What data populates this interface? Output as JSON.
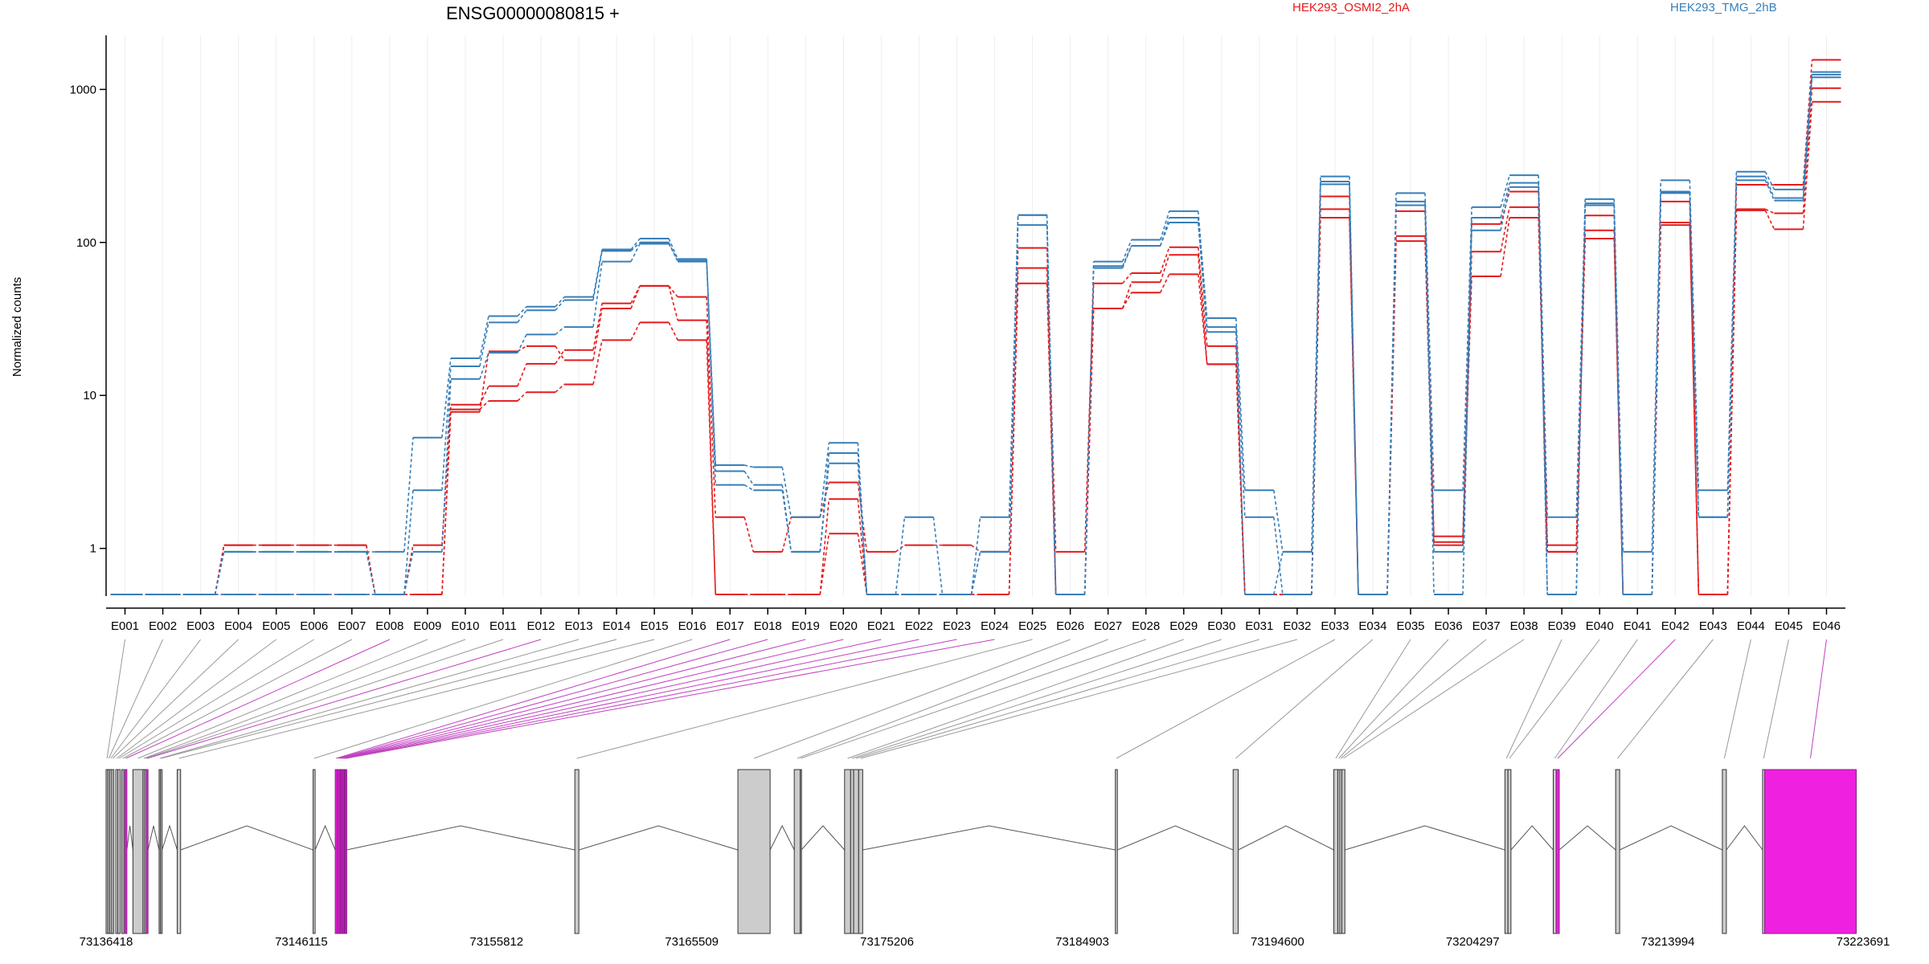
{
  "chart_data": {
    "type": "line",
    "title": "ENSG00000080815 +",
    "ylabel": "Normalized counts",
    "xlabel": "",
    "yscale": "log",
    "ylim": [
      0.5,
      2000
    ],
    "yticks": [
      1,
      10,
      100,
      1000
    ],
    "ytick_labels": [
      "1",
      "10",
      "100",
      "1000"
    ],
    "categories": [
      "E001",
      "E002",
      "E003",
      "E004",
      "E005",
      "E006",
      "E007",
      "E008",
      "E009",
      "E010",
      "E011",
      "E012",
      "E013",
      "E014",
      "E015",
      "E016",
      "E017",
      "E018",
      "E019",
      "E020",
      "E021",
      "E022",
      "E023",
      "E024",
      "E025",
      "E026",
      "E027",
      "E028",
      "E029",
      "E030",
      "E031",
      "E032",
      "E033",
      "E034",
      "E035",
      "E036",
      "E037",
      "E038",
      "E039",
      "E040",
      "E041",
      "E042",
      "E043",
      "E044",
      "E045",
      "E046"
    ],
    "legend": [
      {
        "name": "HEK293_OSMI2_2hA",
        "color": "#e41a1c"
      },
      {
        "name": "HEK293_TMG_2hB",
        "color": "#377eb8"
      }
    ],
    "series": [
      {
        "group": "HEK293_OSMI2_2hA",
        "color": "#e41a1c",
        "values": [
          0.5,
          0.5,
          0.5,
          1.05,
          1.05,
          1.05,
          1.05,
          0.5,
          1.05,
          8.7,
          11.5,
          16.1,
          19.8,
          40,
          52,
          44,
          1.6,
          0.95,
          1.6,
          2.7,
          0.95,
          1.05,
          1.05,
          0.95,
          92,
          0.95,
          54,
          63,
          93,
          21,
          0.5,
          0.5,
          200,
          0.5,
          160,
          1.2,
          132,
          215,
          1.05,
          150,
          0.5,
          185,
          0.5,
          238,
          238,
          1560
        ]
      },
      {
        "group": "HEK293_OSMI2_2hA",
        "color": "#e41a1c",
        "values": [
          0.5,
          0.5,
          0.5,
          1.05,
          1.05,
          1.05,
          1.05,
          0.5,
          0.5,
          8.1,
          9.2,
          10.5,
          11.8,
          23,
          30,
          23,
          0.5,
          0.5,
          0.5,
          1.25,
          0.5,
          0.5,
          0.5,
          0.5,
          54,
          0.5,
          37,
          47,
          62,
          16,
          0.5,
          0.5,
          145,
          0.5,
          102,
          1.1,
          60,
          145,
          0.95,
          106,
          0.5,
          130,
          0.5,
          162,
          122,
          830
        ]
      },
      {
        "group": "HEK293_OSMI2_2hA",
        "color": "#e41a1c",
        "values": [
          0.5,
          0.5,
          0.5,
          0.5,
          0.5,
          0.5,
          0.5,
          0.5,
          0.5,
          7.8,
          19.4,
          21,
          17,
          37,
          52,
          31,
          0.5,
          0.5,
          0.5,
          2.1,
          0.5,
          0.5,
          0.5,
          0.5,
          68,
          0.5,
          37,
          55,
          83,
          16,
          0.5,
          0.5,
          165,
          0.5,
          110,
          1.05,
          87,
          170,
          0.95,
          120,
          0.5,
          135,
          0.5,
          165,
          155,
          1020
        ]
      },
      {
        "group": "HEK293_TMG_2hB",
        "color": "#377eb8",
        "values": [
          0.5,
          0.5,
          0.5,
          0.95,
          0.95,
          0.95,
          0.95,
          0.95,
          5.3,
          17.5,
          33,
          38,
          44,
          90,
          106,
          78,
          3.5,
          3.4,
          1.6,
          4.9,
          0.5,
          1.6,
          0.5,
          1.6,
          151,
          0.5,
          75,
          104,
          160,
          32,
          2.4,
          0.95,
          270,
          0.5,
          210,
          2.4,
          170,
          275,
          1.6,
          192,
          0.95,
          255,
          2.4,
          290,
          222,
          1300
        ]
      },
      {
        "group": "HEK293_TMG_2hB",
        "color": "#377eb8",
        "values": [
          0.5,
          0.5,
          0.5,
          0.5,
          0.5,
          0.5,
          0.5,
          0.5,
          2.4,
          15.5,
          30,
          36,
          42,
          88,
          100,
          75,
          3.2,
          2.6,
          0.95,
          4.2,
          0.5,
          0.5,
          0.5,
          0.95,
          130,
          0.5,
          70,
          95,
          145,
          28,
          1.6,
          0.5,
          250,
          0.5,
          185,
          0.5,
          145,
          245,
          0.5,
          180,
          0.5,
          215,
          1.6,
          270,
          195,
          1250
        ]
      },
      {
        "group": "HEK293_TMG_2hB",
        "color": "#377eb8",
        "values": [
          0.5,
          0.5,
          0.5,
          0.95,
          0.95,
          0.95,
          0.95,
          0.5,
          0.95,
          12.8,
          19,
          25,
          28,
          75,
          98,
          76,
          2.6,
          2.4,
          0.95,
          3.6,
          0.5,
          0.5,
          0.5,
          0.95,
          151,
          0.5,
          68,
          95,
          135,
          26,
          0.5,
          0.95,
          240,
          0.5,
          175,
          0.95,
          120,
          230,
          0.5,
          175,
          0.5,
          210,
          1.6,
          255,
          188,
          1200
        ]
      }
    ],
    "gene_model": {
      "genomic_ticks": [
        73136418,
        73146115,
        73155812,
        73165509,
        73175206,
        73184903,
        73194600,
        73204297,
        73213994,
        73223691
      ],
      "exons": [
        {
          "id": "E001",
          "start": 73136418,
          "end": 73136510,
          "highlight": false
        },
        {
          "id": "E002",
          "start": 73136510,
          "end": 73136600,
          "highlight": false
        },
        {
          "id": "E003",
          "start": 73136600,
          "end": 73136700,
          "highlight": false
        },
        {
          "id": "E004",
          "start": 73136700,
          "end": 73136800,
          "highlight": false
        },
        {
          "id": "E005",
          "start": 73136900,
          "end": 73137000,
          "highlight": false
        },
        {
          "id": "E006",
          "start": 73137000,
          "end": 73137120,
          "highlight": false
        },
        {
          "id": "E007",
          "start": 73137200,
          "end": 73137300,
          "highlight": false
        },
        {
          "id": "E008",
          "start": 73137350,
          "end": 73137450,
          "highlight": true
        },
        {
          "id": "E009",
          "start": 73137750,
          "end": 73138250,
          "highlight": false
        },
        {
          "id": "E010",
          "start": 73138250,
          "end": 73138340,
          "highlight": false
        },
        {
          "id": "E011",
          "start": 73138340,
          "end": 73138420,
          "highlight": false
        },
        {
          "id": "E012",
          "start": 73138420,
          "end": 73138500,
          "highlight": true
        },
        {
          "id": "E013",
          "start": 73139050,
          "end": 73139120,
          "highlight": false
        },
        {
          "id": "E014",
          "start": 73139120,
          "end": 73139200,
          "highlight": false
        },
        {
          "id": "E015",
          "start": 73139950,
          "end": 73140120,
          "highlight": false
        },
        {
          "id": "E016",
          "start": 73146700,
          "end": 73146800,
          "highlight": false
        },
        {
          "id": "E017",
          "start": 73147800,
          "end": 73147900,
          "highlight": true
        },
        {
          "id": "E018",
          "start": 73147900,
          "end": 73147990,
          "highlight": true
        },
        {
          "id": "E019",
          "start": 73147990,
          "end": 73148060,
          "highlight": true
        },
        {
          "id": "E020",
          "start": 73148060,
          "end": 73148130,
          "highlight": true
        },
        {
          "id": "E021",
          "start": 73148130,
          "end": 73148200,
          "highlight": true
        },
        {
          "id": "E022",
          "start": 73148200,
          "end": 73148260,
          "highlight": true
        },
        {
          "id": "E023",
          "start": 73148260,
          "end": 73148310,
          "highlight": true
        },
        {
          "id": "E024",
          "start": 73148310,
          "end": 73148360,
          "highlight": true
        },
        {
          "id": "E025",
          "start": 73159700,
          "end": 73159900,
          "highlight": false
        },
        {
          "id": "E026",
          "start": 73167800,
          "end": 73169400,
          "highlight": false
        },
        {
          "id": "E027",
          "start": 73170600,
          "end": 73170900,
          "highlight": false
        },
        {
          "id": "E028",
          "start": 73170900,
          "end": 73170950,
          "highlight": false
        },
        {
          "id": "E029",
          "start": 73173100,
          "end": 73173400,
          "highlight": false
        },
        {
          "id": "E030",
          "start": 73173400,
          "end": 73173550,
          "highlight": false
        },
        {
          "id": "E031",
          "start": 73173550,
          "end": 73173800,
          "highlight": false
        },
        {
          "id": "E032",
          "start": 73173800,
          "end": 73174000,
          "highlight": false
        },
        {
          "id": "E033",
          "start": 73186550,
          "end": 73186650,
          "highlight": false
        },
        {
          "id": "E034",
          "start": 73192400,
          "end": 73192650,
          "highlight": false
        },
        {
          "id": "E035",
          "start": 73197400,
          "end": 73197600,
          "highlight": false
        },
        {
          "id": "E036",
          "start": 73197600,
          "end": 73197700,
          "highlight": false
        },
        {
          "id": "E037",
          "start": 73197700,
          "end": 73197800,
          "highlight": false
        },
        {
          "id": "E038",
          "start": 73197800,
          "end": 73197950,
          "highlight": false
        },
        {
          "id": "E039",
          "start": 73205900,
          "end": 73206050,
          "highlight": false
        },
        {
          "id": "E040",
          "start": 73206050,
          "end": 73206200,
          "highlight": false
        },
        {
          "id": "E041",
          "start": 73208300,
          "end": 73208450,
          "highlight": false
        },
        {
          "id": "E042",
          "start": 73208450,
          "end": 73208600,
          "highlight": true
        },
        {
          "id": "E043",
          "start": 73211400,
          "end": 73211600,
          "highlight": false
        },
        {
          "id": "E044",
          "start": 73216700,
          "end": 73216900,
          "highlight": false
        },
        {
          "id": "E045",
          "start": 73218700,
          "end": 73218800,
          "highlight": false
        },
        {
          "id": "E046",
          "start": 73218800,
          "end": 73223350,
          "highlight": true
        }
      ]
    }
  }
}
